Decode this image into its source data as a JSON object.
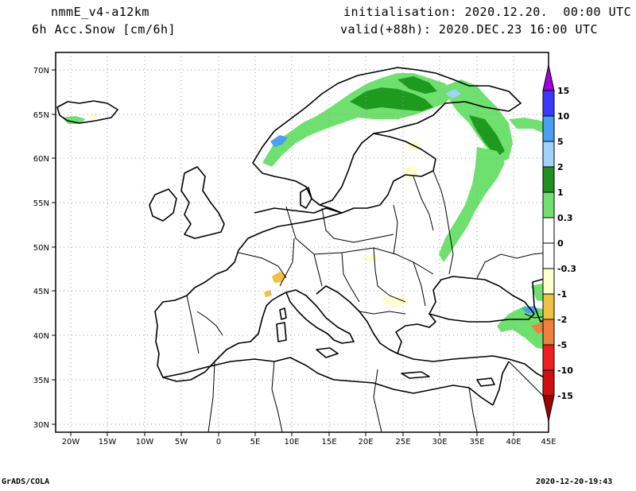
{
  "header": {
    "model": "nmmE_v4-a12km",
    "variable": "6h Acc.Snow [cm/6h]",
    "initialisation": "initialisation: 2020.12.20.  00:00 UTC",
    "valid": "valid(+88h): 2020.DEC.23 16:00 UTC"
  },
  "footer": {
    "left": "GrADS/COLA",
    "right": "2020-12-20-19:43"
  },
  "map": {
    "lon_ticks": [
      "20W",
      "15W",
      "10W",
      "5W",
      "0",
      "5E",
      "10E",
      "15E",
      "20E",
      "25E",
      "30E",
      "35E",
      "40E",
      "45E"
    ],
    "lat_ticks": [
      "70N",
      "65N",
      "60N",
      "55N",
      "50N",
      "45N",
      "40N",
      "35N",
      "30N"
    ],
    "lon_values": [
      -20,
      -15,
      -10,
      -5,
      0,
      5,
      10,
      15,
      20,
      25,
      30,
      35,
      40,
      45
    ],
    "lat_values": [
      70,
      65,
      60,
      55,
      50,
      45,
      40,
      35,
      30
    ],
    "lon_range": [
      -22,
      45
    ],
    "lat_range": [
      29,
      72
    ],
    "colors": {
      "land_outline": "#000000",
      "grid": "#9a9a9a"
    },
    "snow_areas": [
      {
        "name": "scandinavia-mountains",
        "level": "0.3-1",
        "color": "#6ee06e"
      },
      {
        "name": "lapland",
        "level": "1-2",
        "color": "#1e9a1e"
      },
      {
        "name": "kola-karelia",
        "level": "0.3-1",
        "color": "#6ee06e"
      },
      {
        "name": "western-russia-band",
        "level": "0.3-1",
        "color": "#6ee06e"
      },
      {
        "name": "caucasus",
        "level": "0.3-2",
        "color": "#6ee06e"
      },
      {
        "name": "alps",
        "level": "-0.3 to -1",
        "color": "#f0c040"
      }
    ]
  },
  "colorbar": {
    "labels": [
      "15",
      "10",
      "5",
      "2",
      "1",
      "0.3",
      "0",
      "-0.3",
      "-1",
      "-2",
      "-5",
      "-10",
      "-15"
    ],
    "colors": [
      "#a000e0",
      "#3a3aff",
      "#4aa0f0",
      "#a0d2ff",
      "#209020",
      "#70e070",
      "#ffffff",
      "#ffffd0",
      "#f0c040",
      "#f08040",
      "#f02020",
      "#d01010",
      "#a00000"
    ]
  }
}
